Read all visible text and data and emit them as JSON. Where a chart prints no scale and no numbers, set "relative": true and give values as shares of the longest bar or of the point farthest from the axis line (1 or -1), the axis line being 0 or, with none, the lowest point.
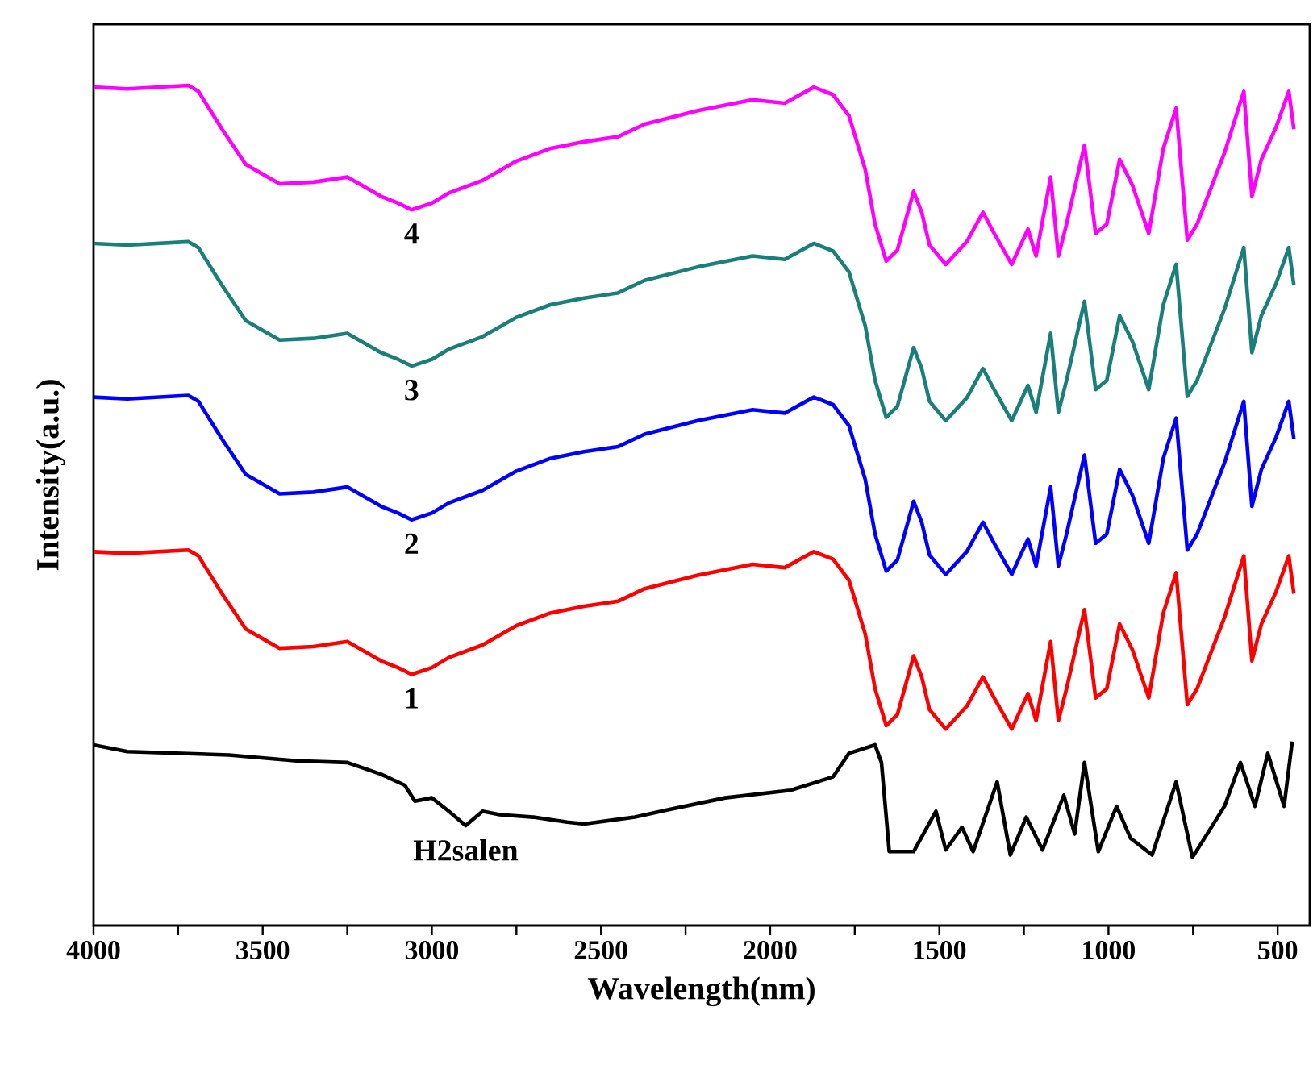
{
  "chart_data": {
    "type": "line",
    "relative": true,
    "xlabel": "Wavelength(nm)",
    "ylabel": "Intensity(a.u.)",
    "xlim": [
      4000,
      405
    ],
    "xticks": [
      4000,
      {
        "value": 3750,
        "label": null
      },
      3500,
      {
        "value": 3250,
        "label": null
      },
      3000,
      {
        "value": 2750,
        "label": null
      },
      2500,
      {
        "value": 2250,
        "label": null
      },
      2000,
      {
        "value": 1750,
        "label": null
      },
      1500,
      {
        "value": 1250,
        "label": null
      },
      1000,
      {
        "value": 750,
        "label": null
      },
      500
    ],
    "series": [
      {
        "name": "4",
        "color": "#ff00ff",
        "x": [
          4000,
          3900,
          3720,
          3690,
          3620,
          3550,
          3450,
          3350,
          3250,
          3150,
          3100,
          3060,
          3000,
          2950,
          2850,
          2750,
          2650,
          2550,
          2450,
          2371,
          2214,
          2052,
          1957,
          1871,
          1814,
          1767,
          1719,
          1690,
          1657,
          1624,
          1576,
          1552,
          1529,
          1481,
          1419,
          1371,
          1338,
          1286,
          1238,
          1214,
          1171,
          1148,
          1124,
          1071,
          1038,
          1005,
          967,
          929,
          881,
          838,
          800,
          767,
          738,
          657,
          600,
          576,
          548,
          505,
          467,
          452
        ],
        "values": [
          0.998,
          0.996,
          1.0,
          0.993,
          0.948,
          0.906,
          0.883,
          0.885,
          0.891,
          0.868,
          0.86,
          0.852,
          0.86,
          0.872,
          0.887,
          0.91,
          0.925,
          0.933,
          0.939,
          0.954,
          0.97,
          0.983,
          0.979,
          0.998,
          0.989,
          0.964,
          0.9,
          0.835,
          0.791,
          0.804,
          0.874,
          0.849,
          0.81,
          0.787,
          0.814,
          0.849,
          0.824,
          0.787,
          0.829,
          0.797,
          0.891,
          0.797,
          0.835,
          0.929,
          0.824,
          0.835,
          0.912,
          0.881,
          0.824,
          0.925,
          0.973,
          0.816,
          0.835,
          0.92,
          0.993,
          0.868,
          0.912,
          0.95,
          0.993,
          0.948
        ]
      },
      {
        "name": "3",
        "color": "#1a7f7a",
        "x": [
          4000,
          3900,
          3720,
          3690,
          3620,
          3550,
          3450,
          3350,
          3250,
          3150,
          3100,
          3060,
          3000,
          2950,
          2850,
          2750,
          2650,
          2550,
          2450,
          2371,
          2214,
          2052,
          1957,
          1871,
          1814,
          1767,
          1719,
          1690,
          1657,
          1624,
          1576,
          1552,
          1529,
          1481,
          1419,
          1371,
          1338,
          1286,
          1238,
          1214,
          1171,
          1148,
          1124,
          1071,
          1038,
          1005,
          967,
          929,
          881,
          838,
          800,
          767,
          738,
          657,
          600,
          576,
          548,
          505,
          467,
          452
        ],
        "values": [
          0.812,
          0.81,
          0.814,
          0.807,
          0.762,
          0.72,
          0.697,
          0.699,
          0.705,
          0.682,
          0.674,
          0.666,
          0.674,
          0.686,
          0.701,
          0.724,
          0.739,
          0.747,
          0.753,
          0.768,
          0.784,
          0.797,
          0.793,
          0.812,
          0.803,
          0.778,
          0.714,
          0.649,
          0.605,
          0.618,
          0.688,
          0.663,
          0.624,
          0.601,
          0.628,
          0.663,
          0.638,
          0.601,
          0.643,
          0.611,
          0.705,
          0.611,
          0.649,
          0.743,
          0.638,
          0.649,
          0.726,
          0.695,
          0.638,
          0.739,
          0.787,
          0.63,
          0.649,
          0.734,
          0.807,
          0.682,
          0.726,
          0.764,
          0.807,
          0.762
        ]
      },
      {
        "name": "2",
        "color": "#0000ff",
        "x": [
          4000,
          3900,
          3720,
          3690,
          3620,
          3550,
          3450,
          3350,
          3250,
          3150,
          3100,
          3060,
          3000,
          2950,
          2850,
          2750,
          2650,
          2550,
          2450,
          2371,
          2214,
          2052,
          1957,
          1871,
          1814,
          1767,
          1719,
          1690,
          1657,
          1624,
          1576,
          1552,
          1529,
          1481,
          1419,
          1371,
          1338,
          1286,
          1238,
          1214,
          1171,
          1148,
          1124,
          1071,
          1038,
          1005,
          967,
          929,
          881,
          838,
          800,
          767,
          738,
          657,
          600,
          576,
          548,
          505,
          467,
          452
        ],
        "values": [
          0.629,
          0.627,
          0.631,
          0.624,
          0.579,
          0.537,
          0.514,
          0.516,
          0.522,
          0.499,
          0.491,
          0.483,
          0.491,
          0.503,
          0.518,
          0.541,
          0.556,
          0.564,
          0.57,
          0.585,
          0.601,
          0.614,
          0.61,
          0.629,
          0.62,
          0.595,
          0.531,
          0.466,
          0.422,
          0.435,
          0.505,
          0.48,
          0.441,
          0.418,
          0.445,
          0.48,
          0.455,
          0.418,
          0.46,
          0.428,
          0.522,
          0.428,
          0.466,
          0.56,
          0.455,
          0.466,
          0.543,
          0.512,
          0.455,
          0.556,
          0.604,
          0.447,
          0.466,
          0.551,
          0.624,
          0.499,
          0.543,
          0.581,
          0.624,
          0.579
        ]
      },
      {
        "name": "1",
        "color": "#ff0000",
        "x": [
          4000,
          3900,
          3720,
          3690,
          3620,
          3550,
          3450,
          3350,
          3250,
          3150,
          3100,
          3060,
          3000,
          2950,
          2850,
          2750,
          2650,
          2550,
          2450,
          2371,
          2214,
          2052,
          1957,
          1871,
          1814,
          1767,
          1719,
          1690,
          1657,
          1624,
          1576,
          1552,
          1529,
          1481,
          1419,
          1371,
          1338,
          1286,
          1238,
          1214,
          1171,
          1148,
          1124,
          1071,
          1038,
          1005,
          967,
          929,
          881,
          838,
          800,
          767,
          738,
          657,
          600,
          576,
          548,
          505,
          467,
          452
        ],
        "values": [
          0.445,
          0.443,
          0.447,
          0.44,
          0.395,
          0.353,
          0.33,
          0.332,
          0.338,
          0.315,
          0.307,
          0.299,
          0.307,
          0.319,
          0.334,
          0.357,
          0.372,
          0.38,
          0.386,
          0.401,
          0.417,
          0.43,
          0.426,
          0.445,
          0.436,
          0.411,
          0.347,
          0.282,
          0.238,
          0.251,
          0.321,
          0.296,
          0.257,
          0.234,
          0.261,
          0.296,
          0.271,
          0.234,
          0.276,
          0.244,
          0.338,
          0.244,
          0.282,
          0.376,
          0.271,
          0.282,
          0.359,
          0.328,
          0.271,
          0.372,
          0.42,
          0.263,
          0.282,
          0.367,
          0.44,
          0.315,
          0.359,
          0.397,
          0.44,
          0.395
        ]
      },
      {
        "name": "H2salen",
        "color": "#000000",
        "x": [
          4000,
          3900,
          3600,
          3400,
          3250,
          3150,
          3080,
          3050,
          3000,
          2950,
          2900,
          2850,
          2800,
          2700,
          2600,
          2550,
          2400,
          2300,
          2133,
          1940,
          1814,
          1767,
          1690,
          1671,
          1648,
          1576,
          1510,
          1481,
          1433,
          1400,
          1329,
          1290,
          1243,
          1195,
          1132,
          1100,
          1071,
          1030,
          976,
          935,
          871,
          800,
          752,
          657,
          610,
          567,
          529,
          481,
          457
        ],
        "values": [
          0.215,
          0.207,
          0.203,
          0.196,
          0.194,
          0.18,
          0.167,
          0.148,
          0.152,
          0.136,
          0.119,
          0.136,
          0.132,
          0.129,
          0.123,
          0.121,
          0.129,
          0.138,
          0.152,
          0.161,
          0.177,
          0.205,
          0.215,
          0.194,
          0.088,
          0.088,
          0.136,
          0.09,
          0.117,
          0.088,
          0.171,
          0.084,
          0.129,
          0.09,
          0.155,
          0.109,
          0.194,
          0.088,
          0.142,
          0.104,
          0.084,
          0.171,
          0.081,
          0.142,
          0.194,
          0.142,
          0.205,
          0.142,
          0.219
        ]
      }
    ]
  }
}
